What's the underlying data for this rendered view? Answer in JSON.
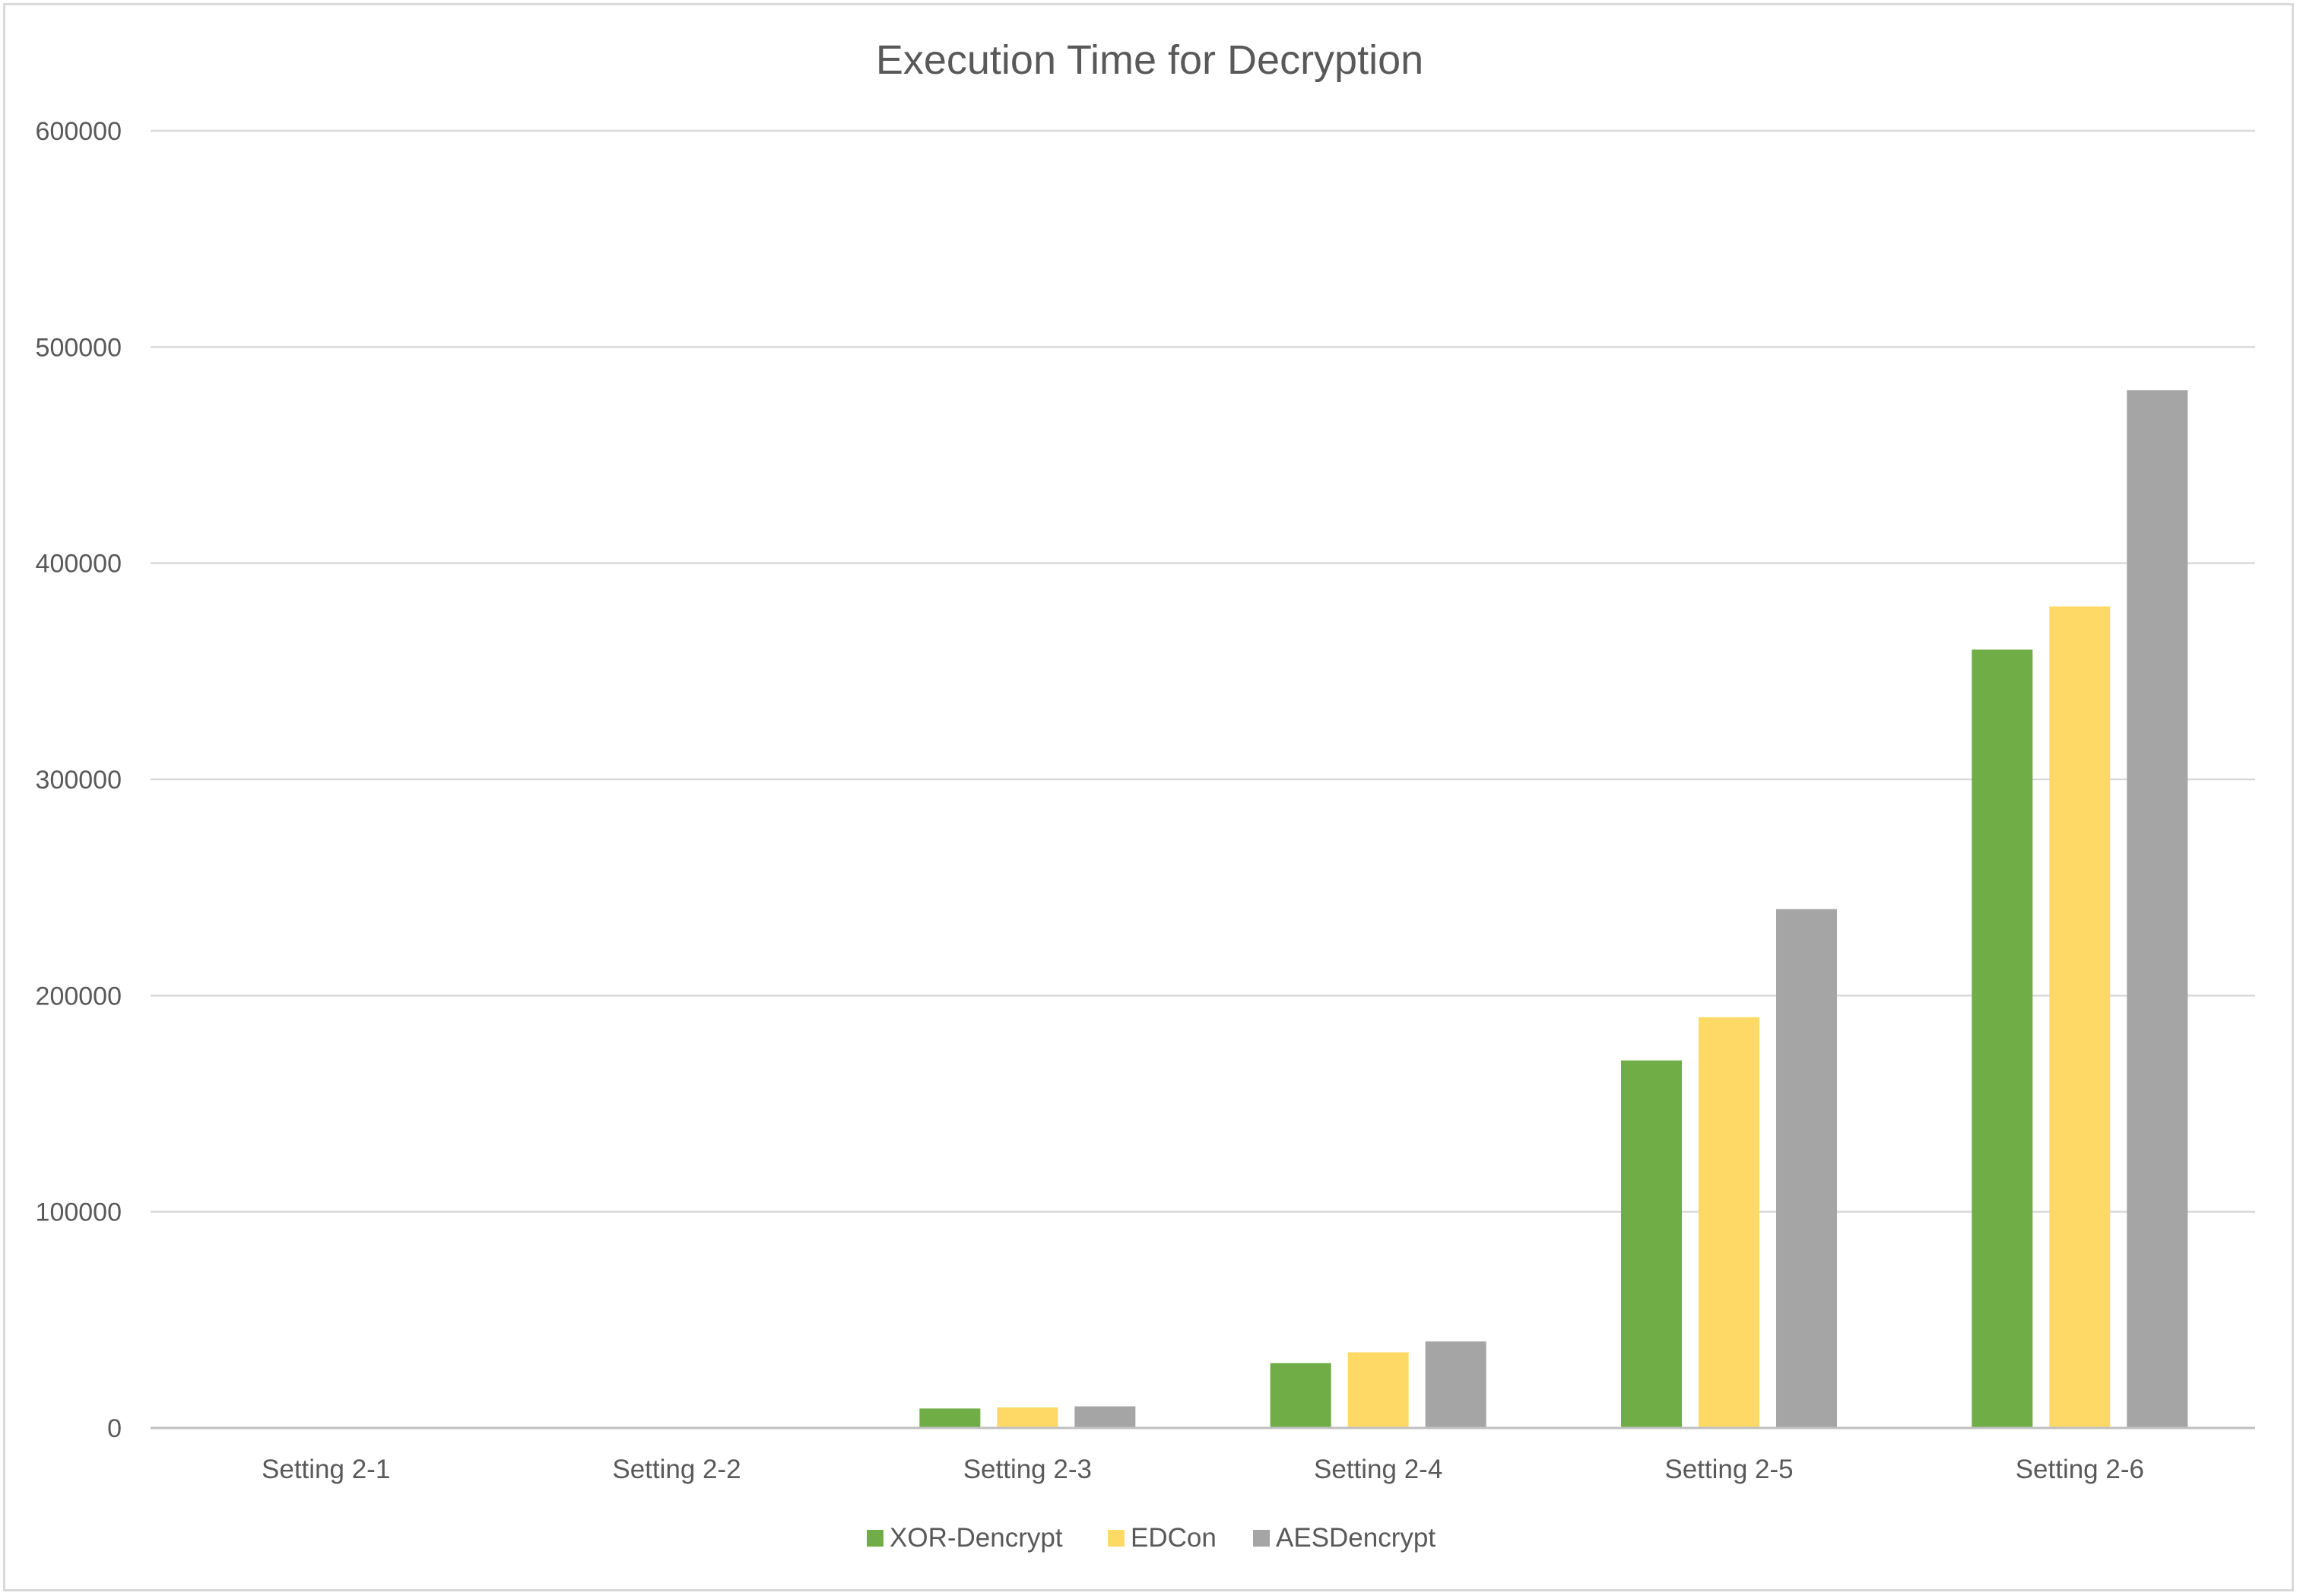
{
  "chart_data": {
    "type": "bar",
    "title": "Execution Time for Decryption",
    "categories": [
      "Setting 2-1",
      "Setting 2-2",
      "Setting 2-3",
      "Setting 2-4",
      "Setting 2-5",
      "Setting 2-6"
    ],
    "series": [
      {
        "name": "XOR-Dencrypt",
        "color": "#70ad47",
        "values": [
          0,
          0,
          9000,
          30000,
          170000,
          360000
        ]
      },
      {
        "name": "EDCon",
        "color": "#ffd966",
        "values": [
          0,
          0,
          9500,
          35000,
          190000,
          380000
        ]
      },
      {
        "name": "AESDencrypt",
        "color": "#a5a5a5",
        "values": [
          0,
          0,
          10000,
          40000,
          240000,
          480000
        ]
      }
    ],
    "y_ticks": [
      "0",
      "100000",
      "200000",
      "300000",
      "400000",
      "500000",
      "600000"
    ],
    "ylim": [
      0,
      600000
    ],
    "grid": true,
    "legend_position": "bottom"
  }
}
